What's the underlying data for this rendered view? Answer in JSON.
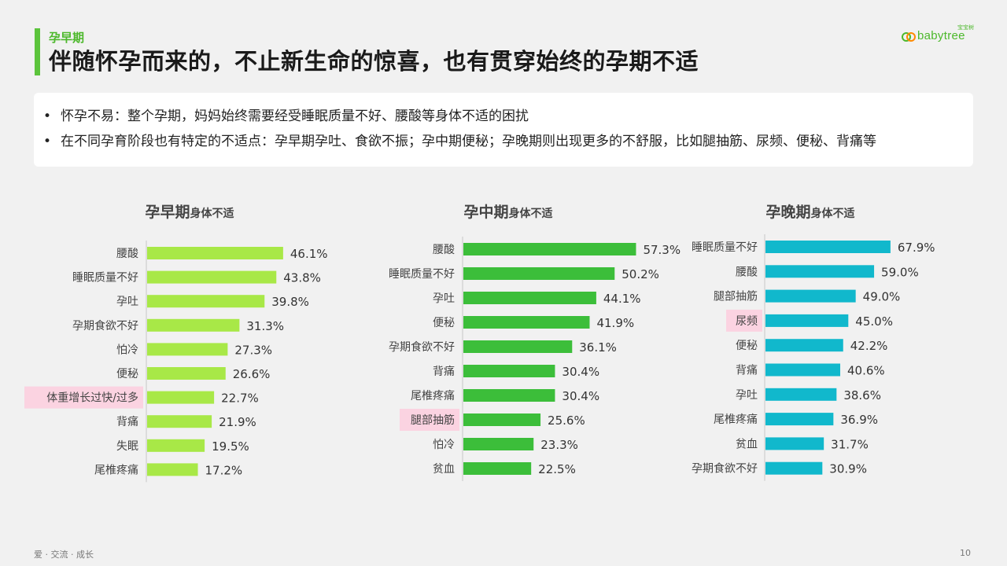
{
  "header": {
    "section_label": "孕早期",
    "title": "伴随怀孕而来的，不止新生命的惊喜，也有贯穿始终的孕期不适"
  },
  "logo": {
    "text": "babytree",
    "sub": "宝宝树"
  },
  "summary": {
    "bullets": [
      "怀孕不易：整个孕期，妈妈始终需要经受睡眠质量不好、腰酸等身体不适的困扰",
      "在不同孕育阶段也有特定的不适点：孕早期孕吐、食欲不振；孕中期便秘；孕晚期则出现更多的不舒服，比如腿抽筋、尿频、便秘、背痛等"
    ]
  },
  "footer": {
    "left": "爱 · 交流 · 成长",
    "page_number": "10"
  },
  "colors": {
    "accent": "#5cc43c",
    "early": "#a8e847",
    "mid": "#3cbe3a",
    "late": "#11b8cc",
    "highlight": "#fbd3e1"
  },
  "chart_data": [
    {
      "type": "bar",
      "orientation": "horizontal",
      "title": "孕早期",
      "title_suffix": "身体不适",
      "categories": [
        "腰酸",
        "睡眠质量不好",
        "孕吐",
        "孕期食欲不好",
        "怕冷",
        "便秘",
        "体重增长过快/过多",
        "背痛",
        "失眠",
        "尾椎疼痛"
      ],
      "values": [
        46.1,
        43.8,
        39.8,
        31.3,
        27.3,
        26.6,
        22.7,
        21.9,
        19.5,
        17.2
      ],
      "labels": [
        "46.1%",
        "43.8%",
        "39.8%",
        "31.3%",
        "27.3%",
        "26.6%",
        "22.7%",
        "21.9%",
        "19.5%",
        "17.2%"
      ],
      "highlight": "体重增长过快/过多",
      "color": "#a8e847",
      "xlim": [
        0,
        100
      ],
      "grid": false
    },
    {
      "type": "bar",
      "orientation": "horizontal",
      "title": "孕中期",
      "title_suffix": "身体不适",
      "categories": [
        "腰酸",
        "睡眠质量不好",
        "孕吐",
        "便秘",
        "孕期食欲不好",
        "背痛",
        "尾椎疼痛",
        "腿部抽筋",
        "怕冷",
        "贫血"
      ],
      "values": [
        57.3,
        50.2,
        44.1,
        41.9,
        36.1,
        30.4,
        30.4,
        25.6,
        23.3,
        22.5
      ],
      "labels": [
        "57.3%",
        "50.2%",
        "44.1%",
        "41.9%",
        "36.1%",
        "30.4%",
        "30.4%",
        "25.6%",
        "23.3%",
        "22.5%"
      ],
      "highlight": "腿部抽筋",
      "color": "#3cbe3a",
      "xlim": [
        0,
        100
      ],
      "grid": false
    },
    {
      "type": "bar",
      "orientation": "horizontal",
      "title": "孕晚期",
      "title_suffix": "身体不适",
      "categories": [
        "睡眠质量不好",
        "腰酸",
        "腿部抽筋",
        "尿频",
        "便秘",
        "背痛",
        "孕吐",
        "尾椎疼痛",
        "贫血",
        "孕期食欲不好"
      ],
      "values": [
        67.9,
        59.0,
        49.0,
        45.0,
        42.2,
        40.6,
        38.6,
        36.9,
        31.7,
        30.9
      ],
      "labels": [
        "67.9%",
        "59.0%",
        "49.0%",
        "45.0%",
        "42.2%",
        "40.6%",
        "38.6%",
        "36.9%",
        "31.7%",
        "30.9%"
      ],
      "highlight": "尿频",
      "color": "#11b8cc",
      "xlim": [
        0,
        100
      ],
      "grid": false
    }
  ]
}
